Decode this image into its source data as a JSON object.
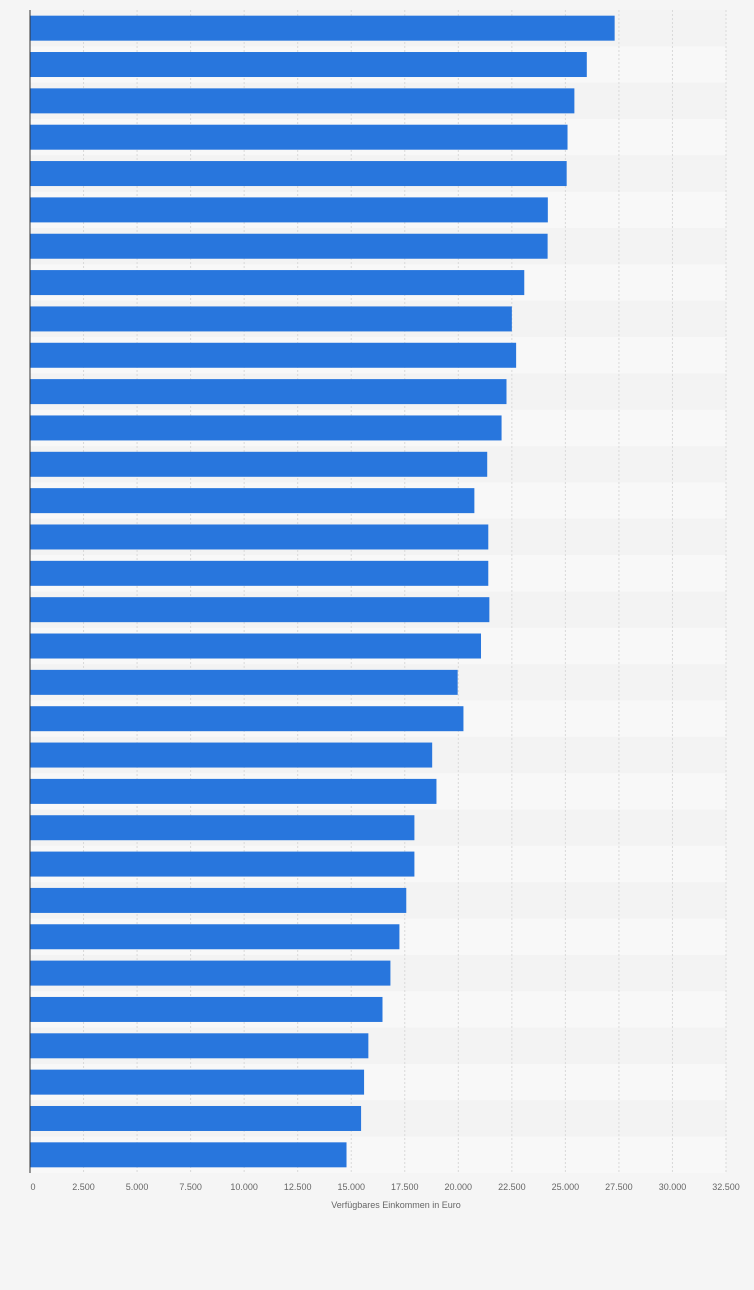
{
  "chart_data": {
    "type": "bar",
    "orientation": "horizontal",
    "title": "",
    "xlabel": "Verfügbares Einkommen in Euro",
    "ylabel": "",
    "xlim": [
      0,
      32500
    ],
    "x_ticks": [
      0,
      2500,
      5000,
      7500,
      10000,
      12500,
      15000,
      17500,
      20000,
      22500,
      25000,
      27500,
      30000,
      32500
    ],
    "x_tick_labels": [
      "0",
      "2.500",
      "5.000",
      "7.500",
      "10.000",
      "12.500",
      "15.000",
      "17.500",
      "20.000",
      "22.500",
      "25.000",
      "27.500",
      "30.000",
      "32.500"
    ],
    "grid": true,
    "legend": "none",
    "category_labels_visible": false,
    "values": [
      27300,
      26000,
      25420,
      25100,
      25060,
      24180,
      24170,
      23080,
      22500,
      22700,
      22250,
      22020,
      21350,
      20750,
      21400,
      21400,
      21450,
      21060,
      19970,
      20240,
      18780,
      18980,
      17950,
      17950,
      17570,
      17250,
      16830,
      16460,
      15800,
      15600,
      15460,
      14780
    ],
    "bar_color": "#2876dd",
    "grid_color": "#d9d9d9",
    "band_colors": [
      "#f3f3f3",
      "#f8f8f8"
    ]
  }
}
